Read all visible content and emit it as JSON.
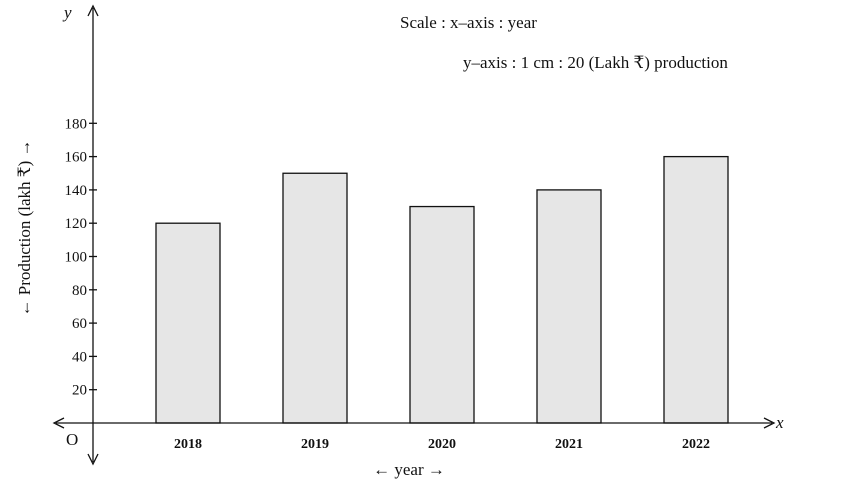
{
  "chart_data": {
    "type": "bar",
    "categories": [
      "2018",
      "2019",
      "2020",
      "2021",
      "2022"
    ],
    "values": [
      120,
      150,
      130,
      140,
      160
    ],
    "yticks": [
      "20",
      "40",
      "60",
      "80",
      "100",
      "120",
      "140",
      "160",
      "180"
    ],
    "ylim": [
      0,
      190
    ],
    "xlabel": "year",
    "ylabel": "Production (lakh ₹)",
    "x_axis_letter": "x",
    "y_axis_letter": "y",
    "origin_label": "O",
    "scale_note_line1": "Scale : x–axis : year",
    "scale_note_line2": "y–axis : 1 cm : 20 (Lakh ₹) production",
    "grid": false,
    "bar_color": "#e6e6e6"
  }
}
